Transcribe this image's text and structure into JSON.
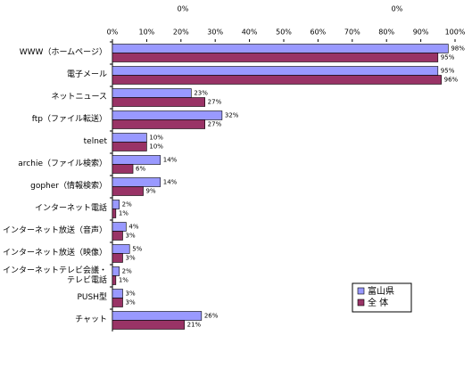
{
  "chart_data": {
    "type": "bar",
    "orientation": "horizontal",
    "annotations": [
      "0%",
      "0%"
    ],
    "categories": [
      "WWW（ホームページ）",
      "電子メール",
      "ネットニュース",
      "ftp（ファイル転送）",
      "telnet",
      "archie（ファイル検索）",
      "gopher（情報検索）",
      "インターネット電話",
      "インターネット放送（音声）",
      "インターネット放送（映像）",
      "インターネットテレビ会議・テレビ電話",
      "PUSH型",
      "チャット"
    ],
    "series": [
      {
        "name": "富山県",
        "color": "#9999ff",
        "values": [
          98,
          95,
          23,
          32,
          10,
          14,
          14,
          2,
          4,
          5,
          2,
          3,
          26
        ],
        "value_labels": [
          "98%",
          "95%",
          "23%",
          "32%",
          "10%",
          "14%",
          "14%",
          "2%",
          "4%",
          "5%",
          "2%",
          "3%",
          "26%"
        ]
      },
      {
        "name": "全 体",
        "color": "#993366",
        "values": [
          95,
          96,
          27,
          27,
          10,
          6,
          9,
          1,
          3,
          3,
          1,
          3,
          21
        ],
        "value_labels": [
          "95%",
          "96%",
          "27%",
          "27%",
          "10%",
          "6%",
          "9%",
          "1%",
          "3%",
          "3%",
          "1%",
          "3%",
          "21%"
        ]
      }
    ],
    "xlim": [
      0,
      100
    ],
    "xticks": [
      {
        "value": 0,
        "label": "0%"
      },
      {
        "value": 10,
        "label": "10%"
      },
      {
        "value": 20,
        "label": "20%"
      },
      {
        "value": 30,
        "label": "30%"
      },
      {
        "value": 40,
        "label": "40%"
      },
      {
        "value": 50,
        "label": "50%"
      },
      {
        "value": 60,
        "label": "60%"
      },
      {
        "value": 70,
        "label": "70%"
      },
      {
        "value": 80,
        "label": "80%"
      },
      {
        "value": 90,
        "label": "90%"
      },
      {
        "value": 100,
        "label": "100%"
      }
    ],
    "grid": false,
    "legend": "lower right"
  }
}
